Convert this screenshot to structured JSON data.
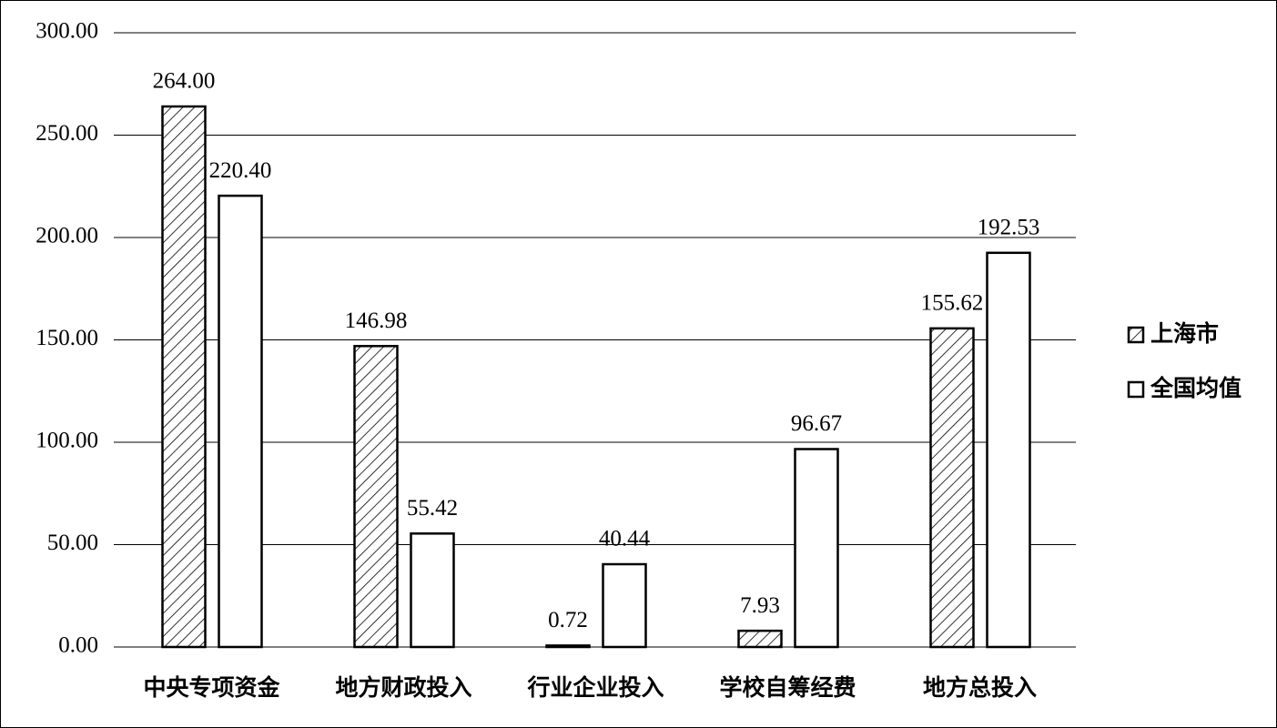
{
  "chart_data": {
    "type": "bar",
    "categories": [
      "中央专项资金",
      "地方财政投入",
      "行业企业投入",
      "学校自筹经费",
      "地方总投入"
    ],
    "series": [
      {
        "name": "上海市",
        "color": "#ffffff",
        "hatch": true,
        "values": [
          264.0,
          146.98,
          0.72,
          7.93,
          155.62
        ],
        "value_labels": [
          "264.00",
          "146.98",
          "0.72",
          "7.93",
          "155.62"
        ]
      },
      {
        "name": "全国均值",
        "color": "#ffffff",
        "hatch": false,
        "values": [
          220.4,
          55.42,
          40.44,
          96.67,
          192.53
        ],
        "value_labels": [
          "220.40",
          "55.42",
          "40.44",
          "96.67",
          "192.53"
        ]
      }
    ],
    "ylim": [
      0,
      300
    ],
    "yticks": [
      {
        "value": 0,
        "label": "0.00"
      },
      {
        "value": 50,
        "label": "50.00"
      },
      {
        "value": 100,
        "label": "100.00"
      },
      {
        "value": 150,
        "label": "150.00"
      },
      {
        "value": 200,
        "label": "200.00"
      },
      {
        "value": 250,
        "label": "250.00"
      },
      {
        "value": 300,
        "label": "300.00"
      }
    ],
    "grid": true,
    "legend": "right"
  }
}
